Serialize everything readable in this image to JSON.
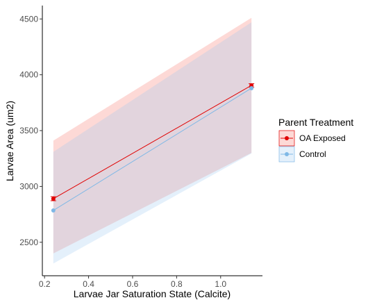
{
  "chart_data": {
    "type": "line",
    "xlabel": "Larvae Jar Saturation State (Calcite)",
    "ylabel": "Larvae Area (um2)",
    "xlim": [
      0.19,
      1.19
    ],
    "ylim": [
      2200,
      4620
    ],
    "x_ticks": [
      "0.2",
      "0.4",
      "0.6",
      "0.8",
      "1.0"
    ],
    "x_tick_values": [
      0.2,
      0.4,
      0.6,
      0.8,
      1.0
    ],
    "y_ticks": [
      "2500",
      "3000",
      "3500",
      "4000",
      "4500"
    ],
    "y_tick_values": [
      2500,
      3000,
      3500,
      4000,
      4500
    ],
    "grid": false,
    "legend": {
      "title": "Parent Treatment",
      "placement": "right"
    },
    "series": [
      {
        "name": "OA Exposed",
        "color": "#e00000",
        "ribbon_color": "#f8766d",
        "x": [
          0.24,
          1.14
        ],
        "y": [
          2890,
          3905
        ],
        "err": [
          18,
          15
        ],
        "ribbon_lower": [
          2400,
          3300
        ],
        "ribbon_upper": [
          3410,
          4510
        ]
      },
      {
        "name": "Control",
        "color": "#7fb8e6",
        "ribbon_color": "#9ec8f0",
        "x": [
          0.24,
          1.14
        ],
        "y": [
          2785,
          3880
        ],
        "err": [
          0,
          0
        ],
        "ribbon_lower": [
          2310,
          3295
        ],
        "ribbon_upper": [
          3310,
          4470
        ]
      }
    ]
  }
}
